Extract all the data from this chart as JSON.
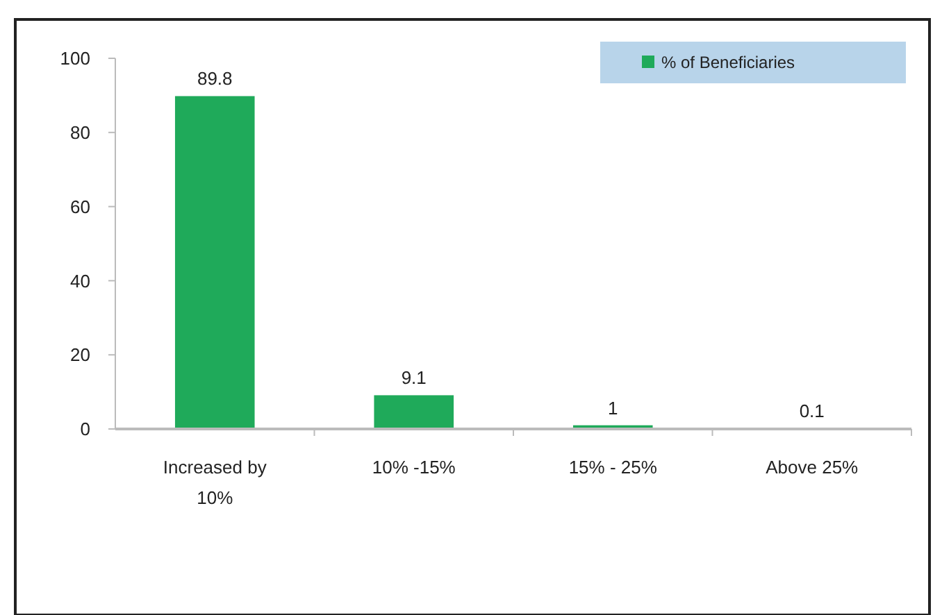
{
  "chart_data": {
    "type": "bar",
    "categories": [
      "Increased by 10%",
      "10% -15%",
      "15% - 25%",
      "Above 25%"
    ],
    "series": [
      {
        "name": "% of Beneficiaries",
        "color": "#1faa5a",
        "values": [
          89.8,
          9.1,
          1,
          0.1
        ]
      }
    ],
    "ylim": [
      0,
      100
    ],
    "yticks": [
      0,
      20,
      40,
      60,
      80,
      100
    ],
    "data_labels": true,
    "legend": "top right",
    "grid": false
  }
}
